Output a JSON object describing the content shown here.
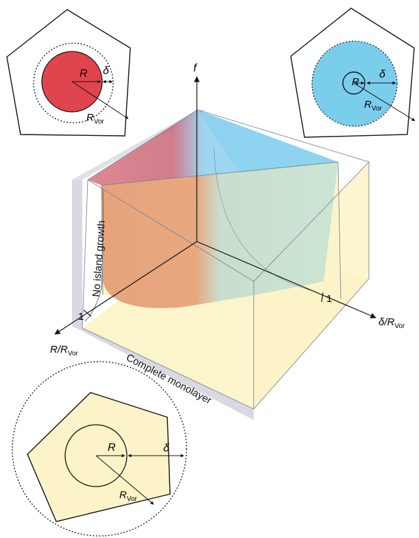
{
  "axes": {
    "f": "f",
    "r_base": "R/R",
    "r_sub": "Vor",
    "d_base": "δ/R",
    "d_sub": "Vor",
    "tick_r": "1",
    "tick_d": "1"
  },
  "regions": {
    "no_island": "No island growth",
    "monolayer": "Complete monolayer"
  },
  "insets": {
    "R": "R",
    "delta": "δ",
    "rvor_base": "R",
    "rvor_sub": "Vor"
  },
  "colors": {
    "red": "#e0444c",
    "blue": "#7bcdec",
    "yellow": "#fcf3c8",
    "orange": "#e8906a",
    "teal": "#b9ded5",
    "outline": "#111111"
  }
}
